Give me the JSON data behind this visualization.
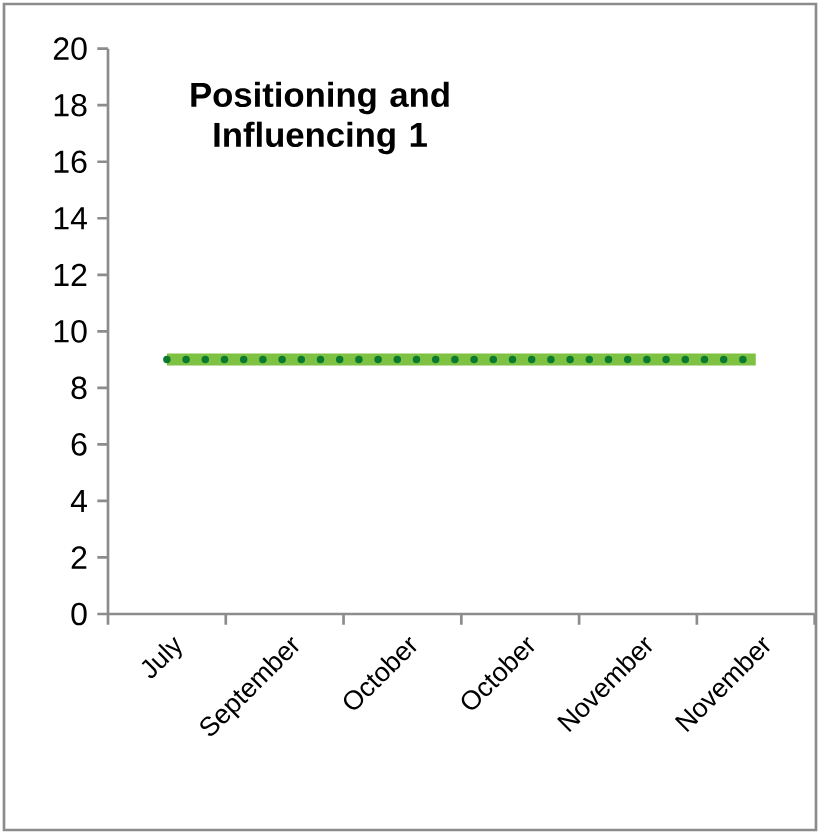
{
  "chart_data": {
    "type": "line",
    "title": "Positioning and Influencing 1",
    "categories": [
      "July",
      "September",
      "October",
      "October",
      "November",
      "November"
    ],
    "series": [
      {
        "color": "#7dc242",
        "values": [
          9,
          9,
          9,
          9,
          9,
          9
        ]
      },
      {
        "color": "#0b7a2f",
        "values": [
          9,
          9,
          9,
          9,
          9,
          9
        ],
        "line_style": "dotted"
      }
    ],
    "ylim": [
      0,
      20
    ],
    "yticks": [
      0,
      2,
      4,
      6,
      8,
      10,
      12,
      14,
      16,
      18,
      20
    ],
    "grid": false,
    "marker": "none"
  }
}
